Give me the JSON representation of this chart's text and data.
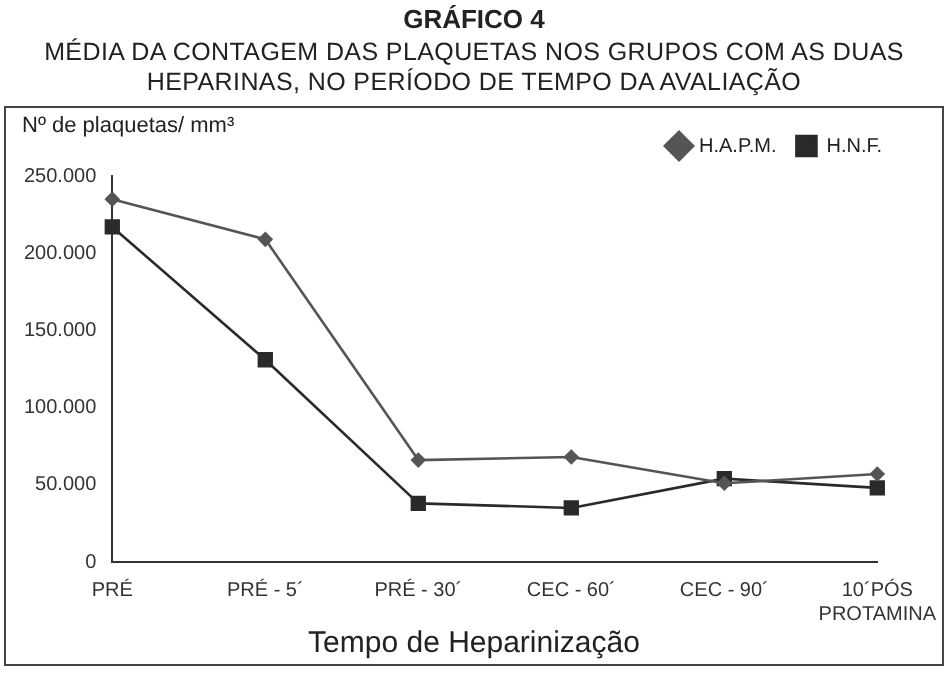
{
  "chart_data": {
    "type": "line",
    "title": "GRÁFICO  4",
    "subtitle": "MÉDIA DA CONTAGEM  DAS PLAQUETAS NOS GRUPOS COM AS DUAS HEPARINAS, NO PERÍODO DE TEMPO DA AVALIAÇÃO",
    "xlabel": "Tempo de Heparinização",
    "ylabel": "Nº de plaquetas/ mm³",
    "categories": [
      "PRÉ",
      "PRÉ - 5´",
      "PRÉ - 30´",
      "CEC - 60´",
      "CEC - 90´",
      "10´PÓS\nPROTAMINA"
    ],
    "series": [
      {
        "name": "H.A.P.M.",
        "color": "#555555",
        "marker": "diamond",
        "values": [
          235000,
          209000,
          66000,
          68000,
          51000,
          57000
        ]
      },
      {
        "name": "H.N.F.",
        "color": "#2a2a2a",
        "marker": "square",
        "values": [
          217000,
          131000,
          38000,
          35000,
          54000,
          48000
        ]
      }
    ],
    "ylim": [
      0,
      250000
    ],
    "yticks": [
      {
        "value": 0,
        "label": "0"
      },
      {
        "value": 50000,
        "label": "50.000"
      },
      {
        "value": 100000,
        "label": "100.000"
      },
      {
        "value": 150000,
        "label": "150.000"
      },
      {
        "value": 200000,
        "label": "200.000"
      },
      {
        "value": 250000,
        "label": "250.000"
      }
    ],
    "grid": false,
    "legend": "top right",
    "line_style": "solid"
  }
}
